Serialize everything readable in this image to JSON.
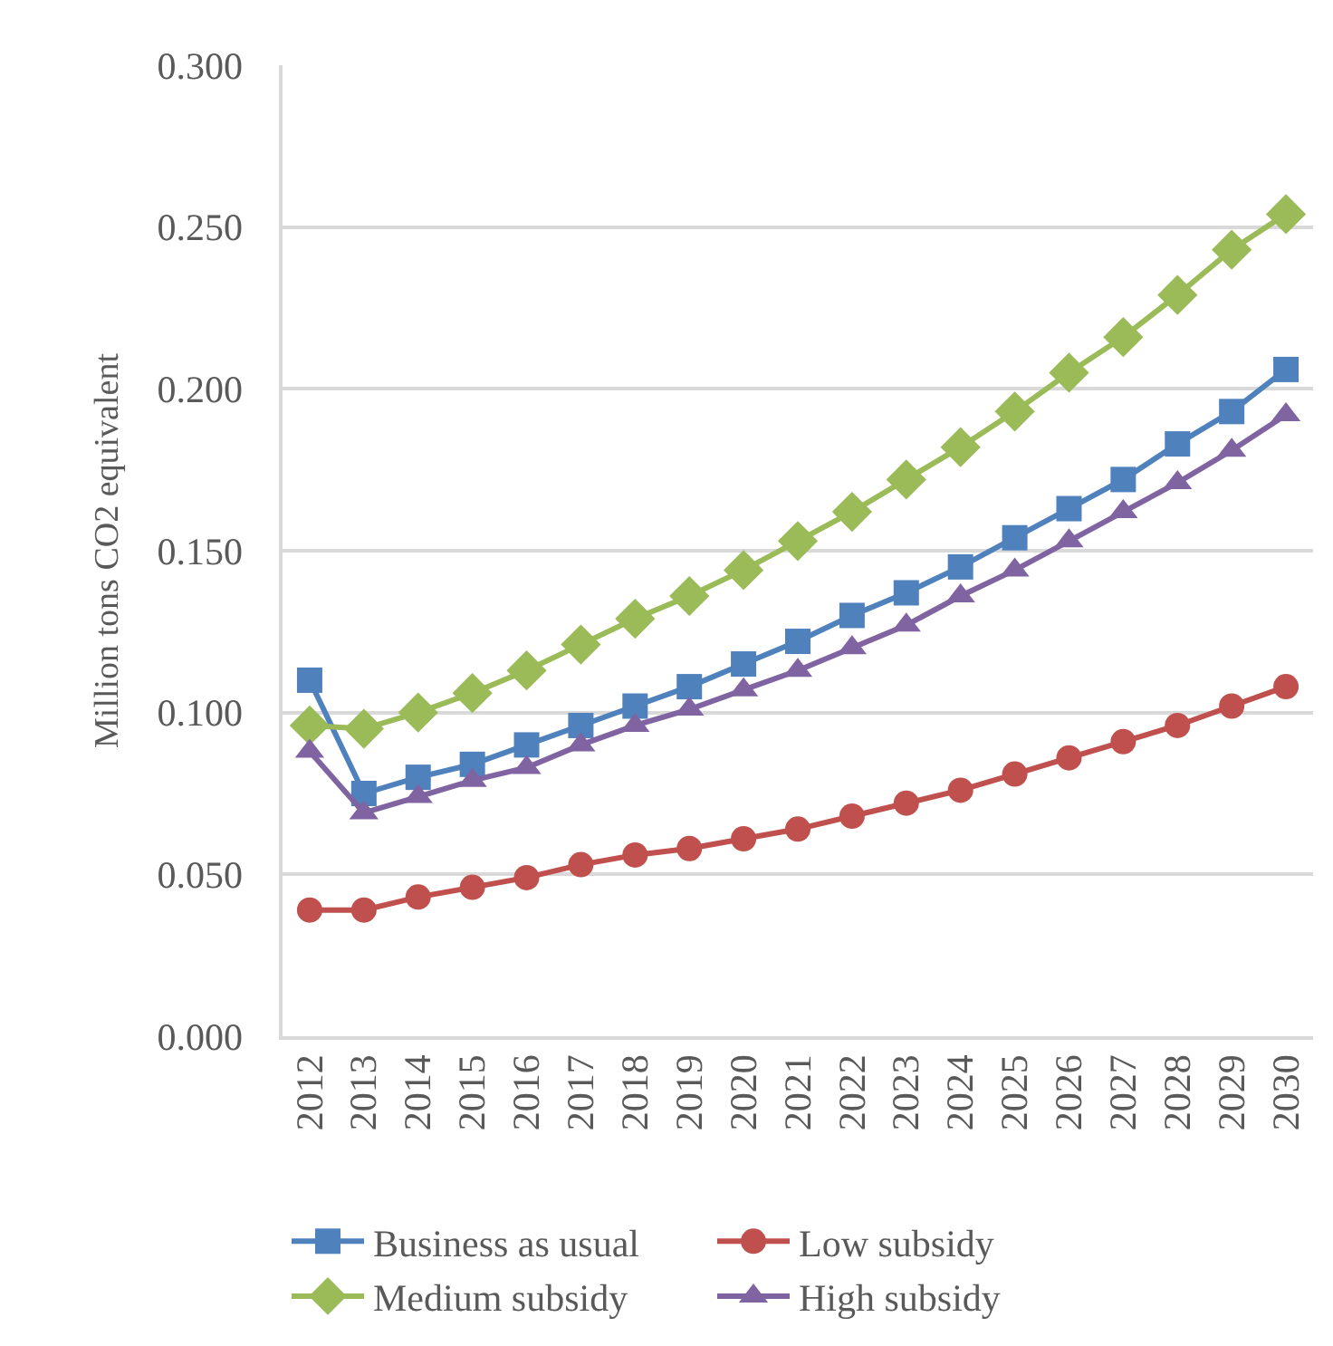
{
  "chart_data": {
    "type": "line",
    "ylabel": "Million tons CO2 equivalent",
    "categories": [
      "2012",
      "2013",
      "2014",
      "2015",
      "2016",
      "2017",
      "2018",
      "2019",
      "2020",
      "2021",
      "2022",
      "2023",
      "2024",
      "2025",
      "2026",
      "2027",
      "2028",
      "2029",
      "2030"
    ],
    "series": [
      {
        "name": "Business as usual",
        "color": "#4f81bd",
        "marker": "square",
        "values": [
          0.11,
          0.075,
          0.08,
          0.084,
          0.09,
          0.096,
          0.102,
          0.108,
          0.115,
          0.122,
          0.13,
          0.137,
          0.145,
          0.154,
          0.163,
          0.172,
          0.183,
          0.193,
          0.206
        ]
      },
      {
        "name": "Low subsidy",
        "color": "#c0504d",
        "marker": "circle",
        "values": [
          0.039,
          0.039,
          0.043,
          0.046,
          0.049,
          0.053,
          0.056,
          0.058,
          0.061,
          0.064,
          0.068,
          0.072,
          0.076,
          0.081,
          0.086,
          0.091,
          0.096,
          0.102,
          0.108
        ]
      },
      {
        "name": "Medium subsidy",
        "color": "#9bbb59",
        "marker": "diamond",
        "values": [
          0.096,
          0.095,
          0.1,
          0.106,
          0.113,
          0.121,
          0.129,
          0.136,
          0.144,
          0.153,
          0.162,
          0.172,
          0.182,
          0.193,
          0.205,
          0.216,
          0.229,
          0.243,
          0.254
        ]
      },
      {
        "name": "High subsidy",
        "color": "#8064a2",
        "marker": "triangle",
        "values": [
          0.088,
          0.069,
          0.074,
          0.079,
          0.083,
          0.09,
          0.096,
          0.101,
          0.107,
          0.113,
          0.12,
          0.127,
          0.136,
          0.144,
          0.153,
          0.162,
          0.171,
          0.181,
          0.192
        ]
      }
    ],
    "ylim": [
      0,
      0.3
    ],
    "yticks": [
      {
        "value": 0,
        "label": "0.000"
      },
      {
        "value": 0.05,
        "label": "0.050"
      },
      {
        "value": 0.1,
        "label": "0.100"
      },
      {
        "value": 0.15,
        "label": "0.150"
      },
      {
        "value": 0.2,
        "label": "0.200"
      },
      {
        "value": 0.25,
        "label": "0.250"
      },
      {
        "value": 0.3,
        "label": "0.300"
      }
    ],
    "grid": "y",
    "legend": "bottom",
    "line_style": "solid"
  }
}
